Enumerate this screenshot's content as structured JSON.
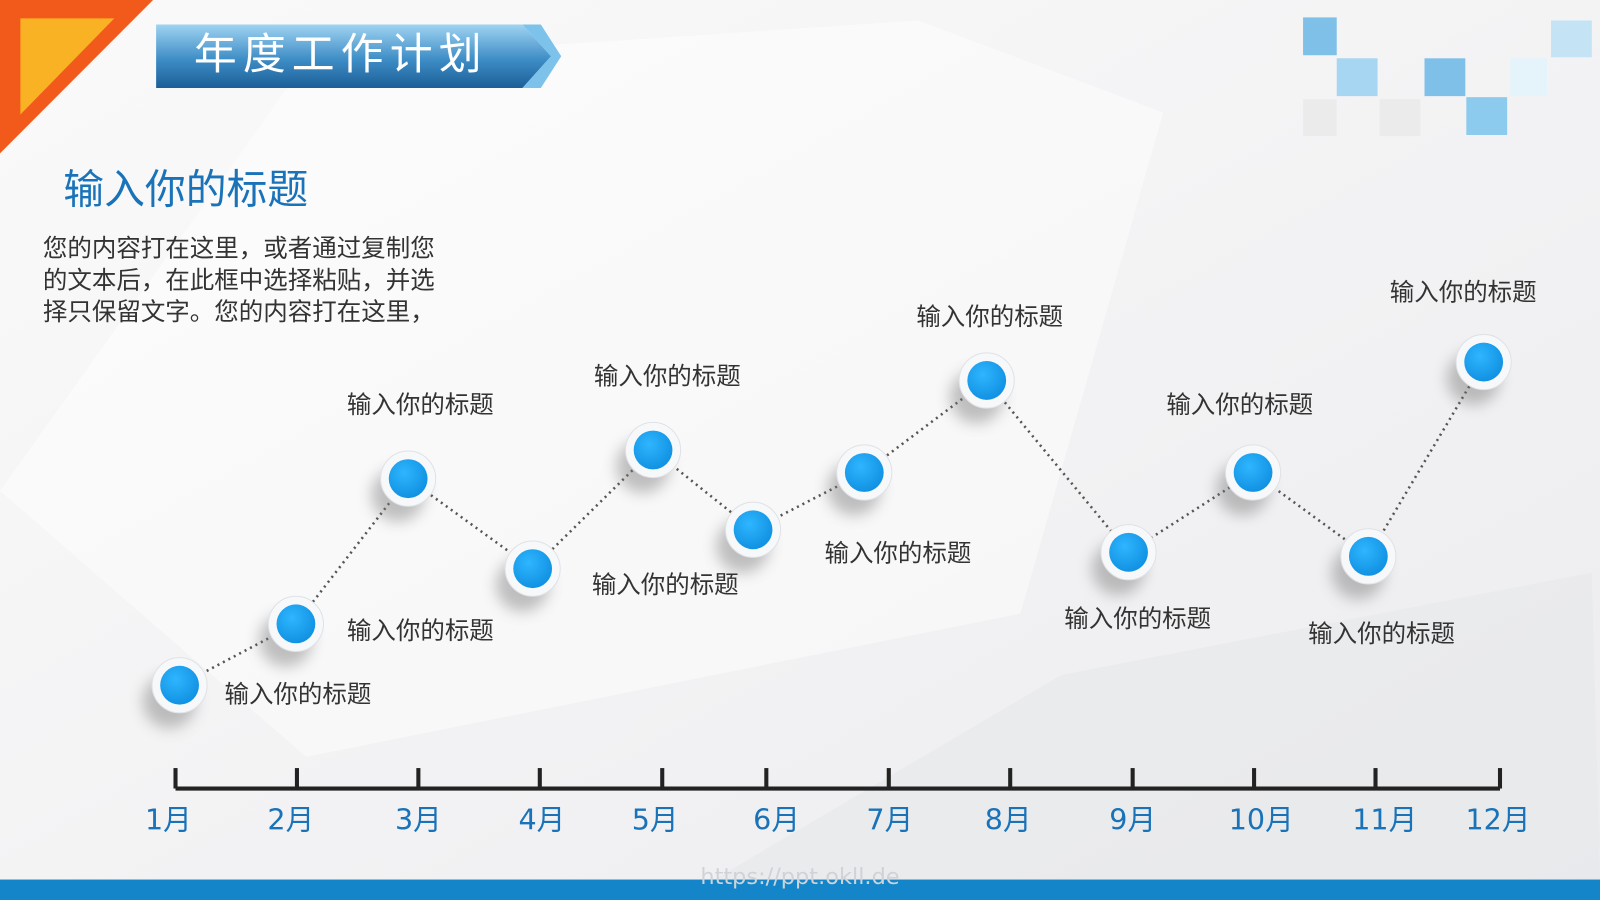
{
  "header": {
    "title": "年度工作计划"
  },
  "section": {
    "title": "输入你的标题",
    "body": "您的内容打在这里，或者通过复制您的文本后，在此框中选择粘贴，并选择只保留文字。您的内容打在这里，"
  },
  "timeline": {
    "milestones": [
      "输入你的标题",
      "输入你的标题",
      "输入你的标题",
      "输入你的标题",
      "输入你的标题",
      "输入你的标题",
      "输入你的标题",
      "输入你的标题",
      "输入你的标题",
      "输入你的标题",
      "输入你的标题"
    ],
    "months": [
      "1月",
      "2月",
      "3月",
      "4月",
      "5月",
      "6月",
      "7月",
      "8月",
      "9月",
      "10月",
      "11月",
      "12月"
    ]
  },
  "footer": {
    "watermark": "https://ppt.okll.de"
  }
}
